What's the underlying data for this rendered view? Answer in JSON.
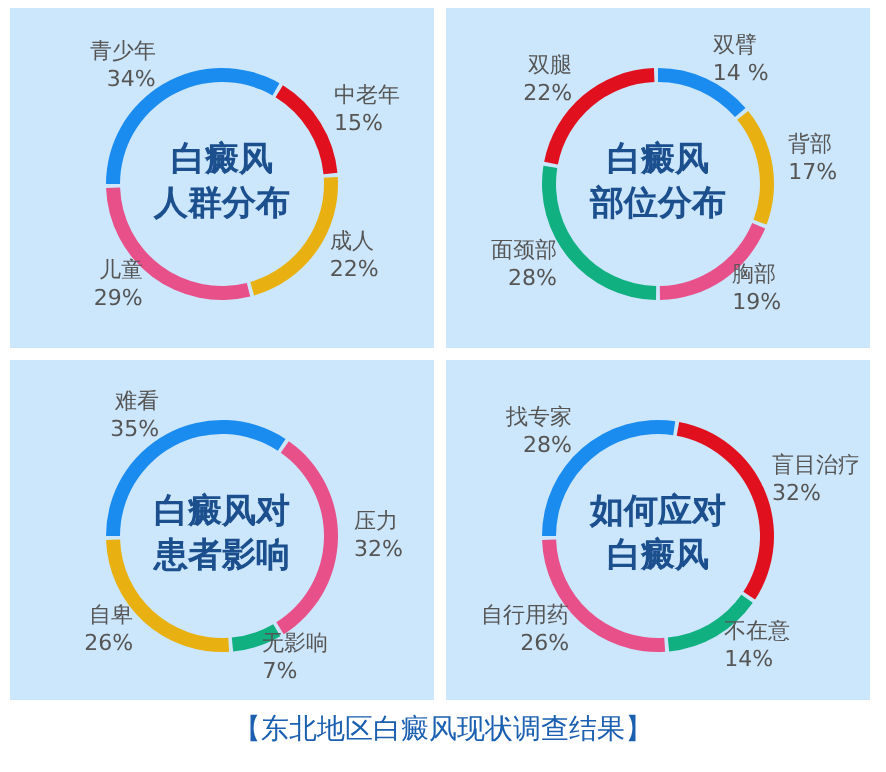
{
  "chart_data": [
    {
      "type": "donut",
      "title": "白癜风人群分布",
      "categories": [
        "青少年",
        "中老年",
        "成人",
        "儿童"
      ],
      "values": [
        34,
        15,
        22,
        29
      ],
      "value_labels": [
        "34%",
        "15%",
        "22%",
        "29%"
      ],
      "colors": [
        "#1a8cf0",
        "#e0101e",
        "#e8b010",
        "#e8508a"
      ],
      "legend": false
    },
    {
      "type": "donut",
      "title": "白癜风部位分布",
      "categories": [
        "双臂",
        "背部",
        "胸部",
        "面颈部",
        "双腿"
      ],
      "values": [
        14,
        17,
        19,
        28,
        22
      ],
      "value_labels": [
        "14 %",
        "17%",
        "19%",
        "28%",
        "22%"
      ],
      "colors": [
        "#1a8cf0",
        "#e8b010",
        "#e8508a",
        "#10b080",
        "#e0101e"
      ],
      "legend": false
    },
    {
      "type": "donut",
      "title": "白癜风对患者影响",
      "categories": [
        "难看",
        "压力",
        "无影响",
        "自卑"
      ],
      "values": [
        35,
        32,
        7,
        26
      ],
      "value_labels": [
        "35%",
        "32%",
        "7%",
        "26%"
      ],
      "colors": [
        "#1a8cf0",
        "#e8508a",
        "#10b080",
        "#e8b010"
      ],
      "legend": false
    },
    {
      "type": "donut",
      "title": "如何应对白癜风",
      "categories": [
        "找专家",
        "盲目治疗",
        "不在意",
        "自行用药"
      ],
      "values": [
        28,
        32,
        14,
        26
      ],
      "value_labels": [
        "28%",
        "32%",
        "14%",
        "26%"
      ],
      "colors": [
        "#1a8cf0",
        "#e0101e",
        "#10b080",
        "#e8508a"
      ],
      "legend": false,
      "annotations": [
        "【东北地区白癜风现状调查结果】"
      ]
    }
  ]
}
